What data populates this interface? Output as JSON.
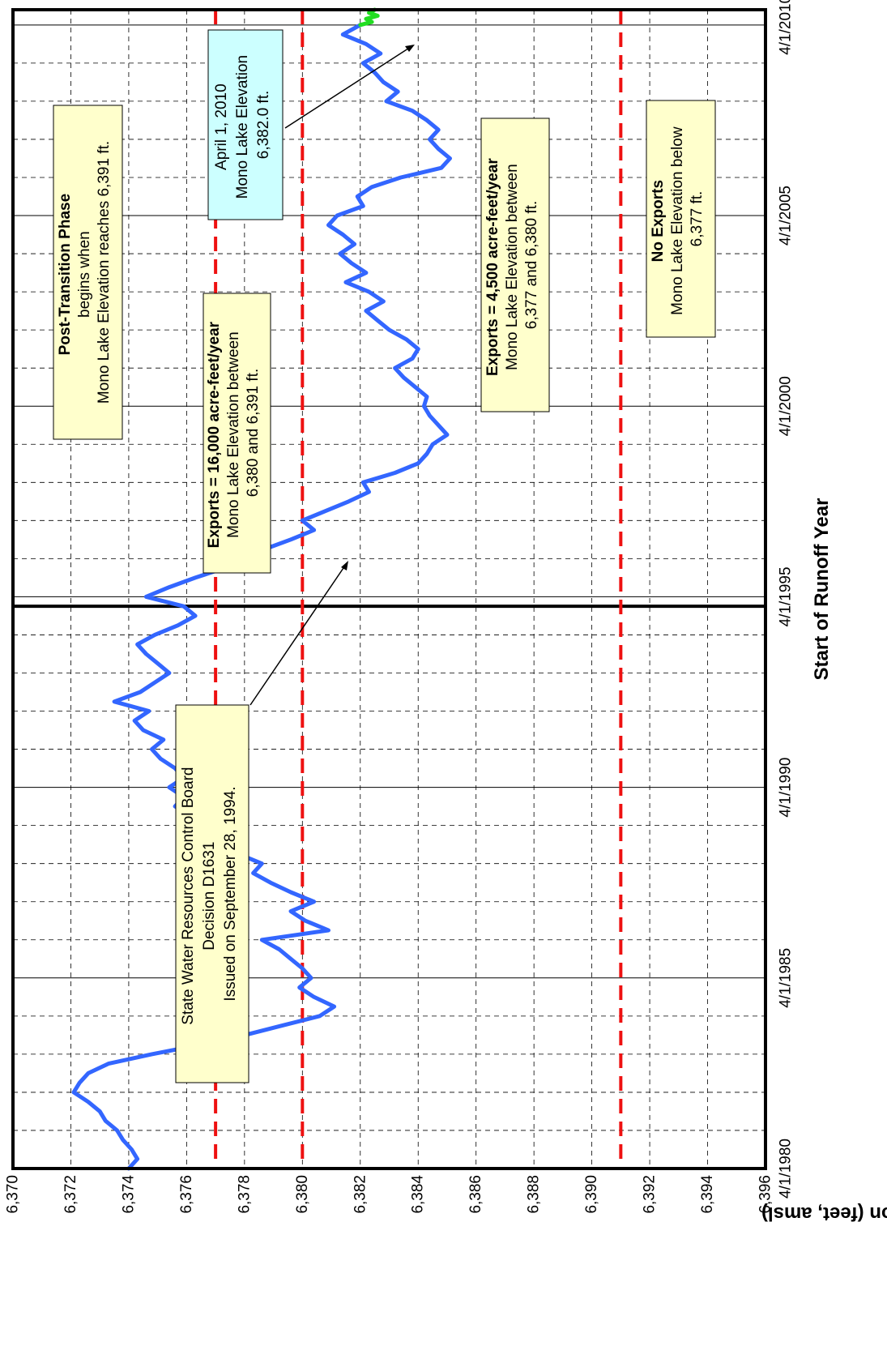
{
  "chart_data": {
    "type": "line",
    "title": "",
    "xlabel": "Start of Runoff Year",
    "ylabel": "Elevation (feet, amsl)",
    "ylim": [
      6370,
      6396
    ],
    "yticks": [
      "6,370",
      "6,372",
      "6,374",
      "6,376",
      "6,378",
      "6,380",
      "6,382",
      "6,384",
      "6,386",
      "6,388",
      "6,390",
      "6,392",
      "6,394",
      "6,396"
    ],
    "xlim": [
      1980,
      2010.4
    ],
    "xticks": [
      {
        "year": 1980,
        "label": "4/1/1980"
      },
      {
        "year": 1985,
        "label": "4/1/1985"
      },
      {
        "year": 1990,
        "label": "4/1/1990"
      },
      {
        "year": 1995,
        "label": "4/1/1995"
      },
      {
        "year": 2000,
        "label": "4/1/2000"
      },
      {
        "year": 2005,
        "label": "4/1/2005"
      },
      {
        "year": 2010,
        "label": "4/1/2010"
      }
    ],
    "grid": true,
    "orientation": "rotated 90° counter-clockwise",
    "colors": {
      "observed": "#3366ff",
      "projected": "#22dd22",
      "threshold": "#ee1111"
    },
    "series": [
      {
        "color": "#3366ff",
        "x": [
          1980.0,
          1980.25,
          1980.5,
          1980.75,
          1981.0,
          1981.25,
          1981.5,
          1981.75,
          1982.0,
          1982.25,
          1982.5,
          1982.75,
          1983.0,
          1983.25,
          1983.5,
          1983.75,
          1984.0,
          1984.25,
          1984.5,
          1984.75,
          1985.0,
          1985.25,
          1985.5,
          1985.75,
          1986.0,
          1986.25,
          1986.5,
          1986.75,
          1987.0,
          1987.25,
          1987.5,
          1987.75,
          1988.0,
          1988.25,
          1988.5,
          1988.75,
          1989.0,
          1989.25,
          1989.5,
          1989.75,
          1990.0,
          1990.25,
          1990.5,
          1990.75,
          1991.0,
          1991.25,
          1991.5,
          1991.75,
          1992.0,
          1992.25,
          1992.5,
          1992.75,
          1993.0,
          1993.25,
          1993.5,
          1993.75,
          1994.0,
          1994.25,
          1994.5,
          1994.75,
          1995.0,
          1995.25,
          1995.5,
          1995.75,
          1996.0,
          1996.25,
          1996.5,
          1996.75,
          1997.0,
          1997.25,
          1997.5,
          1997.75,
          1998.0,
          1998.25,
          1998.5,
          1998.75,
          1999.0,
          1999.25,
          1999.5,
          1999.75,
          2000.0,
          2000.25,
          2000.5,
          2000.75,
          2001.0,
          2001.25,
          2001.5,
          2001.75,
          2002.0,
          2002.25,
          2002.5,
          2002.75,
          2003.0,
          2003.25,
          2003.5,
          2003.75,
          2004.0,
          2004.25,
          2004.5,
          2004.75,
          2005.0,
          2005.25,
          2005.5,
          2005.75,
          2006.0,
          2006.25,
          2006.5,
          2006.75,
          2007.0,
          2007.25,
          2007.5,
          2007.75,
          2008.0,
          2008.25,
          2008.5,
          2008.75,
          2009.0,
          2009.25,
          2009.5,
          2009.75,
          2010.0
        ],
        "y": [
          6374.0,
          6374.3,
          6374.1,
          6373.8,
          6373.6,
          6373.2,
          6373.0,
          6372.6,
          6372.1,
          6372.3,
          6372.6,
          6373.3,
          6374.8,
          6376.5,
          6378.0,
          6379.3,
          6380.6,
          6381.1,
          6380.4,
          6379.9,
          6380.3,
          6380.0,
          6379.6,
          6379.2,
          6378.6,
          6380.9,
          6380.1,
          6379.6,
          6380.4,
          6379.6,
          6378.9,
          6378.3,
          6378.6,
          6377.8,
          6377.4,
          6377.0,
          6376.6,
          6376.1,
          6375.6,
          6375.9,
          6375.4,
          6375.9,
          6375.6,
          6375.1,
          6374.8,
          6375.2,
          6374.5,
          6374.2,
          6374.7,
          6373.5,
          6374.4,
          6374.9,
          6375.4,
          6375.0,
          6374.6,
          6374.3,
          6374.9,
          6375.7,
          6376.3,
          6375.9,
          6374.6,
          6375.4,
          6376.3,
          6377.3,
          6378.1,
          6378.7,
          6379.6,
          6380.4,
          6380.0,
          6380.8,
          6381.6,
          6382.3,
          6382.1,
          6383.2,
          6384.0,
          6384.3,
          6384.5,
          6385.0,
          6384.7,
          6384.4,
          6384.2,
          6384.3,
          6383.9,
          6383.5,
          6383.2,
          6383.8,
          6384.0,
          6383.6,
          6383.0,
          6382.6,
          6382.2,
          6382.8,
          6382.3,
          6381.5,
          6382.2,
          6381.7,
          6381.3,
          6381.8,
          6381.4,
          6380.9,
          6381.2,
          6382.1,
          6381.9,
          6382.4,
          6383.4,
          6384.8,
          6385.1,
          6384.7,
          6384.4,
          6384.7,
          6384.3,
          6383.8,
          6382.9,
          6383.3,
          6382.8,
          6382.5,
          6382.1,
          6382.7,
          6382.2,
          6381.4,
          6382.0
        ]
      },
      {
        "color": "#22dd22",
        "x": [
          2010.0,
          2010.08,
          2010.16,
          2010.24,
          2010.32,
          2010.4
        ],
        "y": [
          6382.0,
          6382.4,
          6382.2,
          6382.6,
          6382.3,
          6382.5
        ]
      }
    ],
    "thresholds": [
      {
        "y": 6391,
        "color": "#ee1111"
      },
      {
        "y": 6380,
        "color": "#ee1111"
      },
      {
        "y": 6377,
        "color": "#ee1111"
      }
    ],
    "event_line_year": 1994.75,
    "annotations": {
      "post_transition": {
        "bold": "Post-Transition Phase",
        "lines": [
          "begins when",
          "Mono Lake Elevation reaches 6,391 ft."
        ]
      },
      "exports_16000": {
        "bold": "Exports = 16,000 acre-feet/year",
        "lines": [
          "Mono Lake Elevation between",
          "6,380 and 6,391 ft."
        ]
      },
      "april_2010": {
        "lines": [
          "April 1, 2010",
          "Mono Lake Elevation",
          "6,382.0 ft."
        ]
      },
      "exports_4500": {
        "bold": "Exports = 4,500 acre-feet/year",
        "lines": [
          "Mono Lake Elevation between",
          "6,377 and 6,380 ft."
        ]
      },
      "no_exports": {
        "bold": "No Exports",
        "lines": [
          "Mono Lake Elevation below",
          "6,377 ft."
        ]
      },
      "swrcb": {
        "lines": [
          "State Water Resources Control Board",
          "Decision D1631",
          "Issued on September 28, 1994."
        ]
      }
    }
  }
}
